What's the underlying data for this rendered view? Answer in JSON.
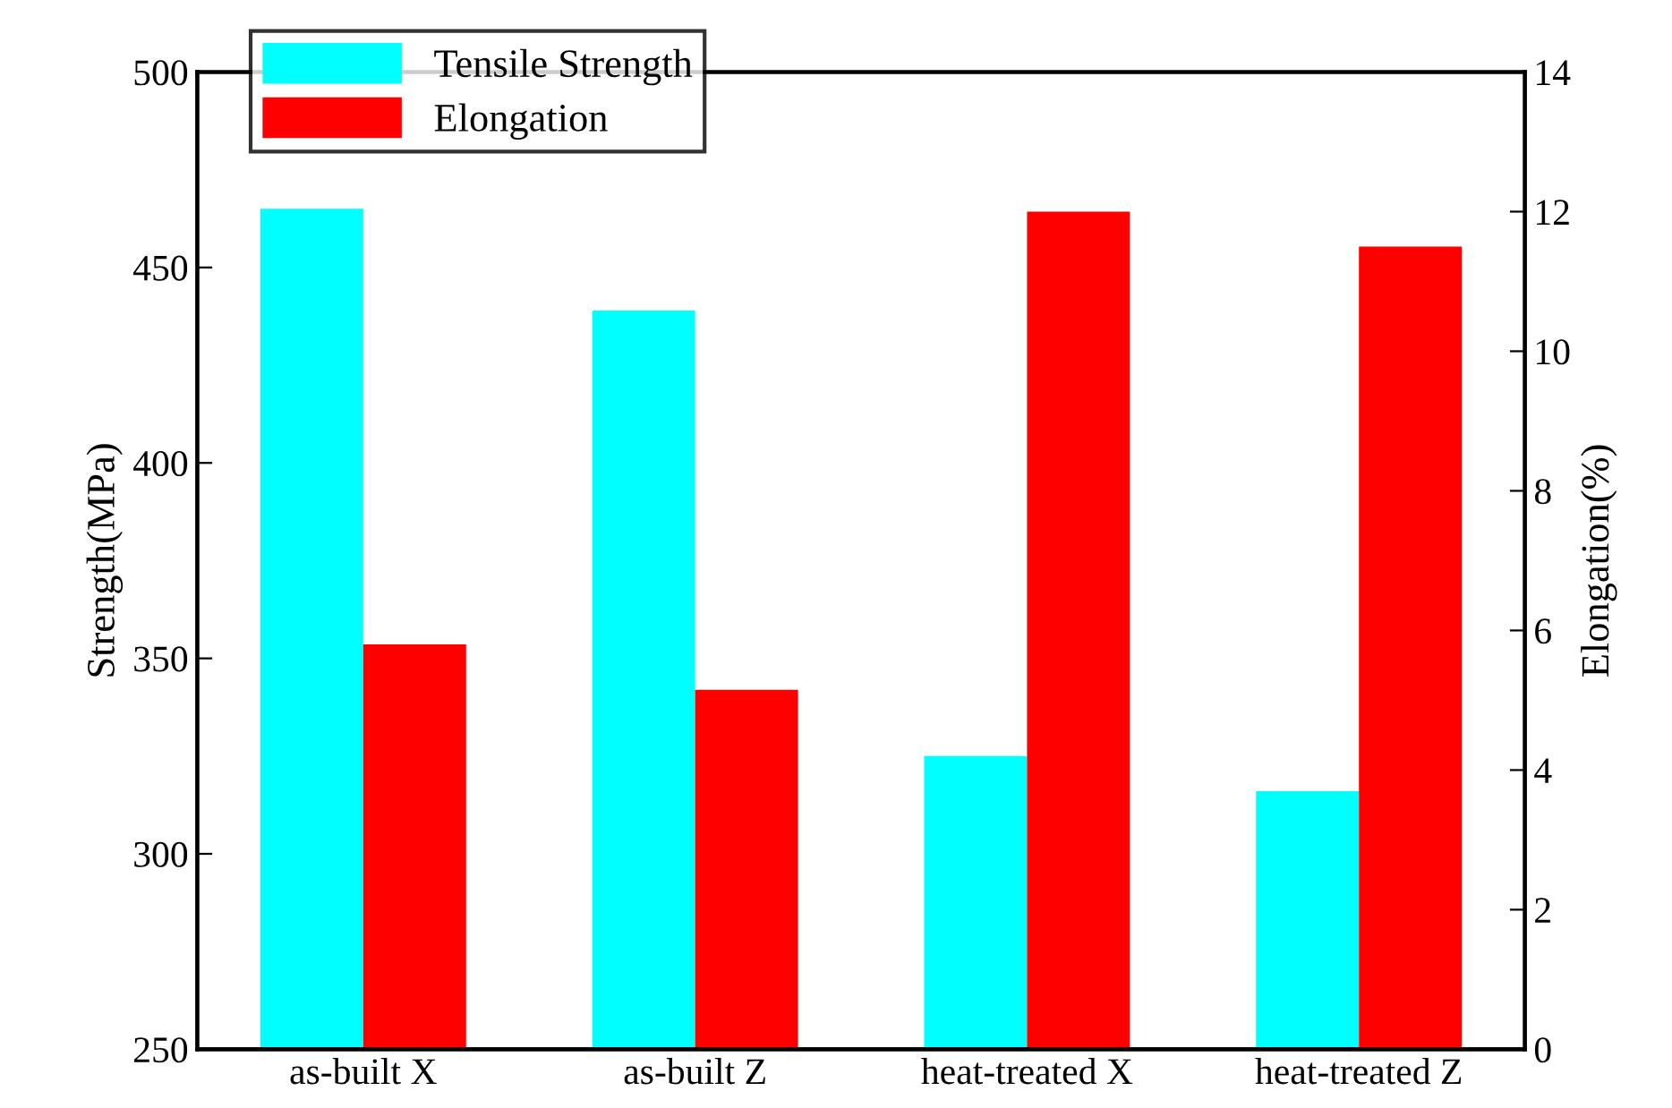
{
  "chart_data": {
    "type": "bar",
    "categories": [
      "as-built X",
      "as-built Z",
      "heat-treated X",
      "heat-treated Z"
    ],
    "ylabel": "Strength(MPa)",
    "y2label": "Elongation(%)",
    "ylim": [
      250,
      500
    ],
    "yticks": [
      250,
      300,
      350,
      400,
      450,
      500
    ],
    "y2lim": [
      0,
      14
    ],
    "y2ticks": [
      0,
      2,
      4,
      6,
      8,
      10,
      12,
      14
    ],
    "legend": "top left",
    "grid": false,
    "series": [
      {
        "name": "Tensile Strength",
        "color": "#00ffff",
        "values": [
          465,
          439,
          325,
          316
        ]
      },
      {
        "name": "Elongation",
        "color": "#ff0000",
        "axis": "y2",
        "values": [
          5.8,
          5.15,
          12.0,
          11.5
        ]
      }
    ]
  }
}
